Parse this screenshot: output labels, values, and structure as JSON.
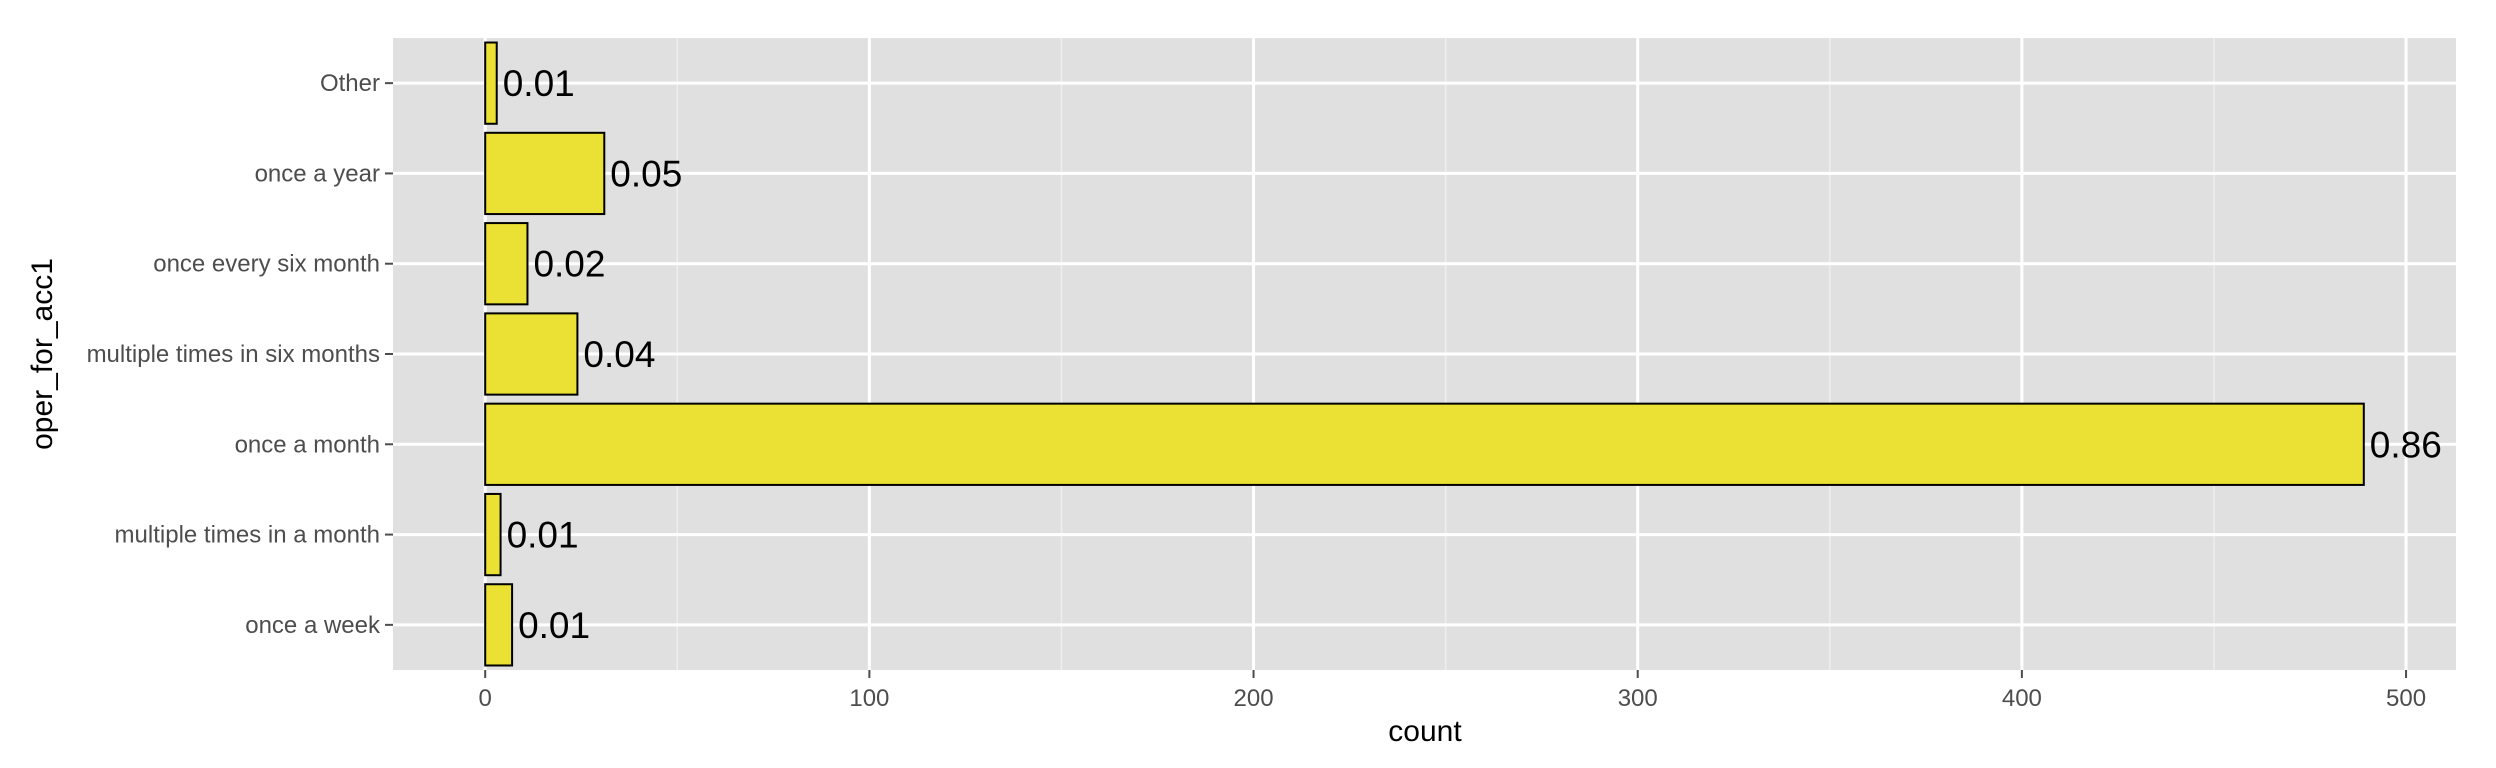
{
  "chart_data": {
    "type": "bar",
    "orientation": "horizontal",
    "categories": [
      "once a week",
      "multiple times in a month",
      "once a month",
      "multiple times in six months",
      "once every six month",
      "once a year",
      "Other"
    ],
    "values": [
      7,
      4,
      489,
      24,
      11,
      31,
      3
    ],
    "labels": [
      "0.01",
      "0.01",
      "0.86",
      "0.04",
      "0.02",
      "0.05",
      "0.01"
    ],
    "xlabel": "count",
    "ylabel": "oper_for_acc1",
    "xlim": [
      -24,
      513
    ],
    "xticks": [
      0,
      100,
      200,
      300,
      400,
      500
    ],
    "xtick_labels": [
      "0",
      "100",
      "200",
      "300",
      "400",
      "500"
    ],
    "grid": true,
    "colors": {
      "bar_fill": "#ebe034",
      "bar_stroke": "#000000",
      "panel": "#e0e0e0",
      "grid": "#ffffff"
    }
  }
}
